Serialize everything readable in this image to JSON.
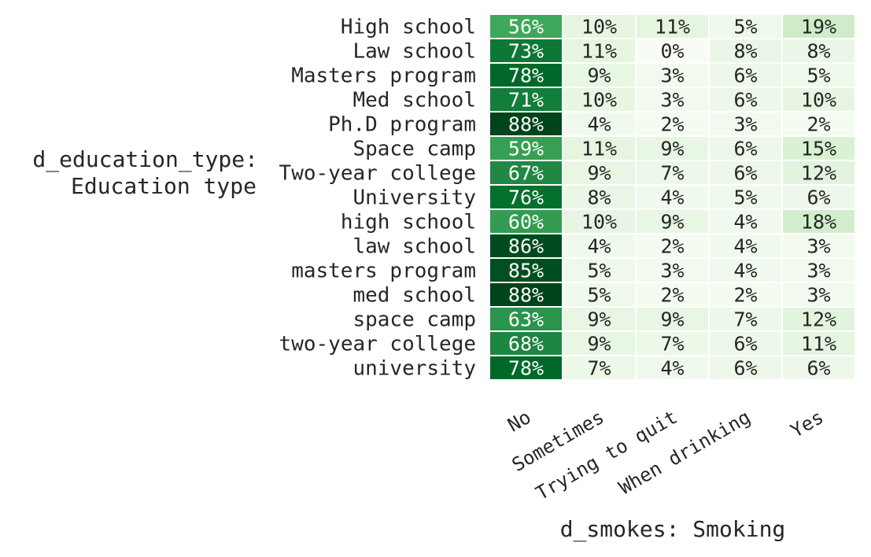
{
  "chart_data": {
    "type": "heatmap",
    "xlabel": "d_smokes: Smoking",
    "ylabel": [
      "d_education_type:",
      "Education type"
    ],
    "columns": [
      "No",
      "Sometimes",
      "Trying to quit",
      "When drinking",
      "Yes"
    ],
    "rows": [
      "High school",
      "Law school",
      "Masters program",
      "Med school",
      "Ph.D program",
      "Space camp",
      "Two-year college",
      "University",
      "high school",
      "law school",
      "masters program",
      "med school",
      "space camp",
      "two-year college",
      "university"
    ],
    "values": [
      [
        56,
        10,
        11,
        5,
        19
      ],
      [
        73,
        11,
        0,
        8,
        8
      ],
      [
        78,
        9,
        3,
        6,
        5
      ],
      [
        71,
        10,
        3,
        6,
        10
      ],
      [
        88,
        4,
        2,
        3,
        2
      ],
      [
        59,
        11,
        9,
        6,
        15
      ],
      [
        67,
        9,
        7,
        6,
        12
      ],
      [
        76,
        8,
        4,
        5,
        6
      ],
      [
        60,
        10,
        9,
        4,
        18
      ],
      [
        86,
        4,
        2,
        4,
        3
      ],
      [
        85,
        5,
        3,
        4,
        3
      ],
      [
        88,
        5,
        2,
        2,
        3
      ],
      [
        63,
        9,
        9,
        7,
        12
      ],
      [
        68,
        9,
        7,
        6,
        11
      ],
      [
        78,
        7,
        4,
        6,
        6
      ]
    ],
    "value_suffix": "%",
    "colormap": "Greens",
    "vmin": 0,
    "vmax": 88,
    "grid": false,
    "legend": "none"
  }
}
